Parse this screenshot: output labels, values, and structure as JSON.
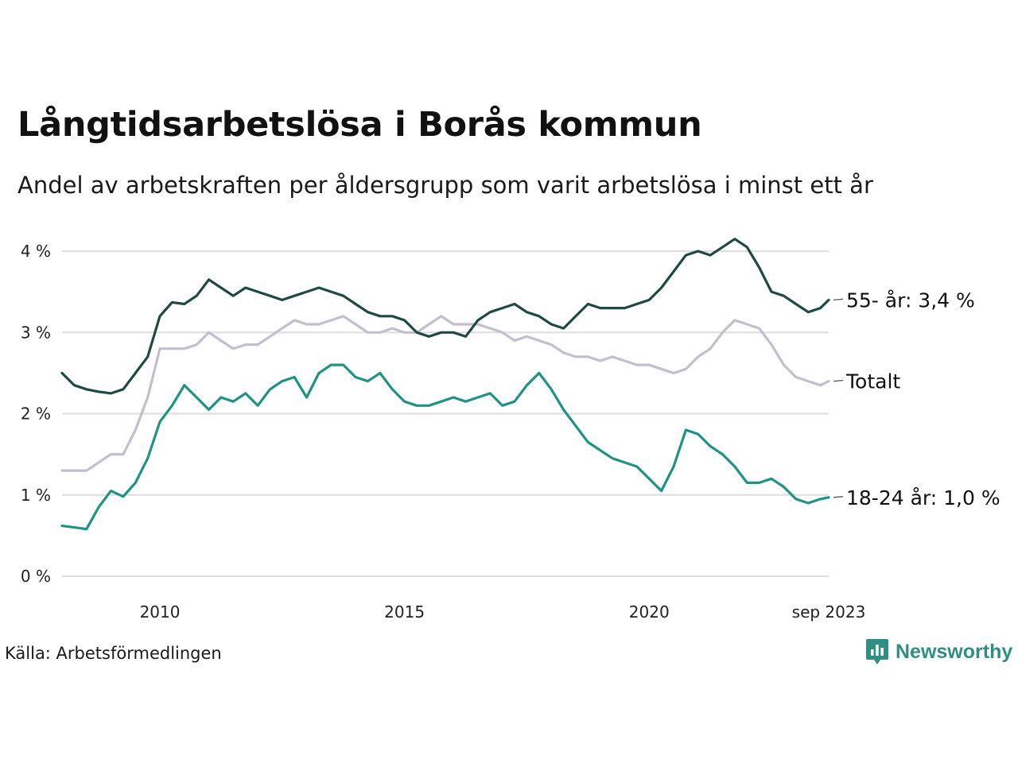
{
  "title": "Långtidsarbetslösa i Borås kommun",
  "subtitle": "Andel av arbetskraften per åldersgrupp som varit arbetslösa i minst ett år",
  "source": "Källa: Arbetsförmedlingen",
  "brand": "Newsworthy",
  "colors": {
    "series_55": "#1f4a44",
    "series_total": "#c4bfcf",
    "series_18_24": "#1f9384",
    "gridline": "#dddddd",
    "brand": "#2f8f83"
  },
  "chart_data": {
    "type": "line",
    "title": "Långtidsarbetslösa i Borås kommun",
    "subtitle": "Andel av arbetskraften per åldersgrupp som varit arbetslösa i minst ett år",
    "xlabel": "",
    "ylabel": "",
    "xlim": [
      2008.0,
      2023.67
    ],
    "ylim": [
      0,
      4.2
    ],
    "grid": true,
    "y_ticks": [
      {
        "value": 0,
        "label": "0 %"
      },
      {
        "value": 1,
        "label": "1 %"
      },
      {
        "value": 2,
        "label": "2 %"
      },
      {
        "value": 3,
        "label": "3 %"
      },
      {
        "value": 4,
        "label": "4 %"
      }
    ],
    "x_ticks": [
      {
        "value": 2010,
        "label": "2010"
      },
      {
        "value": 2015,
        "label": "2015"
      },
      {
        "value": 2020,
        "label": "2020"
      },
      {
        "value": 2023.67,
        "label": "sep 2023"
      }
    ],
    "series": [
      {
        "name": "55- år",
        "end_label": "55- år: 3,4 %",
        "color": "#1f4a44",
        "x": [
          2008.0,
          2008.25,
          2008.5,
          2008.75,
          2009.0,
          2009.25,
          2009.5,
          2009.75,
          2010.0,
          2010.25,
          2010.5,
          2010.75,
          2011.0,
          2011.25,
          2011.5,
          2011.75,
          2012.0,
          2012.25,
          2012.5,
          2012.75,
          2013.0,
          2013.25,
          2013.5,
          2013.75,
          2014.0,
          2014.25,
          2014.5,
          2014.75,
          2015.0,
          2015.25,
          2015.5,
          2015.75,
          2016.0,
          2016.25,
          2016.5,
          2016.75,
          2017.0,
          2017.25,
          2017.5,
          2017.75,
          2018.0,
          2018.25,
          2018.5,
          2018.75,
          2019.0,
          2019.25,
          2019.5,
          2019.75,
          2020.0,
          2020.25,
          2020.5,
          2020.75,
          2021.0,
          2021.25,
          2021.5,
          2021.75,
          2022.0,
          2022.25,
          2022.5,
          2022.75,
          2023.0,
          2023.25,
          2023.5,
          2023.67
        ],
        "values": [
          2.5,
          2.35,
          2.3,
          2.27,
          2.25,
          2.3,
          2.5,
          2.7,
          3.2,
          3.37,
          3.35,
          3.45,
          3.65,
          3.55,
          3.45,
          3.55,
          3.5,
          3.45,
          3.4,
          3.45,
          3.5,
          3.55,
          3.5,
          3.45,
          3.35,
          3.25,
          3.2,
          3.2,
          3.15,
          3.0,
          2.95,
          3.0,
          3.0,
          2.95,
          3.15,
          3.25,
          3.3,
          3.35,
          3.25,
          3.2,
          3.1,
          3.05,
          3.2,
          3.35,
          3.3,
          3.3,
          3.3,
          3.35,
          3.4,
          3.55,
          3.75,
          3.95,
          4.0,
          3.95,
          4.05,
          4.15,
          4.05,
          3.8,
          3.5,
          3.45,
          3.35,
          3.25,
          3.3,
          3.4
        ]
      },
      {
        "name": "Totalt",
        "end_label": "Totalt",
        "color": "#c4bfcf",
        "x": [
          2008.0,
          2008.25,
          2008.5,
          2008.75,
          2009.0,
          2009.25,
          2009.5,
          2009.75,
          2010.0,
          2010.25,
          2010.5,
          2010.75,
          2011.0,
          2011.25,
          2011.5,
          2011.75,
          2012.0,
          2012.25,
          2012.5,
          2012.75,
          2013.0,
          2013.25,
          2013.5,
          2013.75,
          2014.0,
          2014.25,
          2014.5,
          2014.75,
          2015.0,
          2015.25,
          2015.5,
          2015.75,
          2016.0,
          2016.25,
          2016.5,
          2016.75,
          2017.0,
          2017.25,
          2017.5,
          2017.75,
          2018.0,
          2018.25,
          2018.5,
          2018.75,
          2019.0,
          2019.25,
          2019.5,
          2019.75,
          2020.0,
          2020.25,
          2020.5,
          2020.75,
          2021.0,
          2021.25,
          2021.5,
          2021.75,
          2022.0,
          2022.25,
          2022.5,
          2022.75,
          2023.0,
          2023.25,
          2023.5,
          2023.67
        ],
        "values": [
          1.3,
          1.3,
          1.3,
          1.4,
          1.5,
          1.5,
          1.8,
          2.2,
          2.8,
          2.8,
          2.8,
          2.85,
          3.0,
          2.9,
          2.8,
          2.85,
          2.85,
          2.95,
          3.05,
          3.15,
          3.1,
          3.1,
          3.15,
          3.2,
          3.1,
          3.0,
          3.0,
          3.05,
          3.0,
          3.0,
          3.1,
          3.2,
          3.1,
          3.1,
          3.1,
          3.05,
          3.0,
          2.9,
          2.95,
          2.9,
          2.85,
          2.75,
          2.7,
          2.7,
          2.65,
          2.7,
          2.65,
          2.6,
          2.6,
          2.55,
          2.5,
          2.55,
          2.7,
          2.8,
          3.0,
          3.15,
          3.1,
          3.05,
          2.85,
          2.6,
          2.45,
          2.4,
          2.35,
          2.4
        ]
      },
      {
        "name": "18-24 år",
        "end_label": "18-24 år: 1,0 %",
        "color": "#1f9384",
        "x": [
          2008.0,
          2008.25,
          2008.5,
          2008.75,
          2009.0,
          2009.25,
          2009.5,
          2009.75,
          2010.0,
          2010.25,
          2010.5,
          2010.75,
          2011.0,
          2011.25,
          2011.5,
          2011.75,
          2012.0,
          2012.25,
          2012.5,
          2012.75,
          2013.0,
          2013.25,
          2013.5,
          2013.75,
          2014.0,
          2014.25,
          2014.5,
          2014.75,
          2015.0,
          2015.25,
          2015.5,
          2015.75,
          2016.0,
          2016.25,
          2016.5,
          2016.75,
          2017.0,
          2017.25,
          2017.5,
          2017.75,
          2018.0,
          2018.25,
          2018.5,
          2018.75,
          2019.0,
          2019.25,
          2019.5,
          2019.75,
          2020.0,
          2020.25,
          2020.5,
          2020.75,
          2021.0,
          2021.25,
          2021.5,
          2021.75,
          2022.0,
          2022.25,
          2022.5,
          2022.75,
          2023.0,
          2023.25,
          2023.5,
          2023.67
        ],
        "values": [
          0.62,
          0.6,
          0.58,
          0.85,
          1.05,
          0.98,
          1.15,
          1.45,
          1.9,
          2.1,
          2.35,
          2.2,
          2.05,
          2.2,
          2.15,
          2.25,
          2.1,
          2.3,
          2.4,
          2.45,
          2.2,
          2.5,
          2.6,
          2.6,
          2.45,
          2.4,
          2.5,
          2.3,
          2.15,
          2.1,
          2.1,
          2.15,
          2.2,
          2.15,
          2.2,
          2.25,
          2.1,
          2.15,
          2.35,
          2.5,
          2.3,
          2.05,
          1.85,
          1.65,
          1.55,
          1.45,
          1.4,
          1.35,
          1.2,
          1.05,
          1.35,
          1.8,
          1.75,
          1.6,
          1.5,
          1.35,
          1.15,
          1.15,
          1.2,
          1.1,
          0.95,
          0.9,
          0.95,
          0.97
        ]
      }
    ]
  }
}
